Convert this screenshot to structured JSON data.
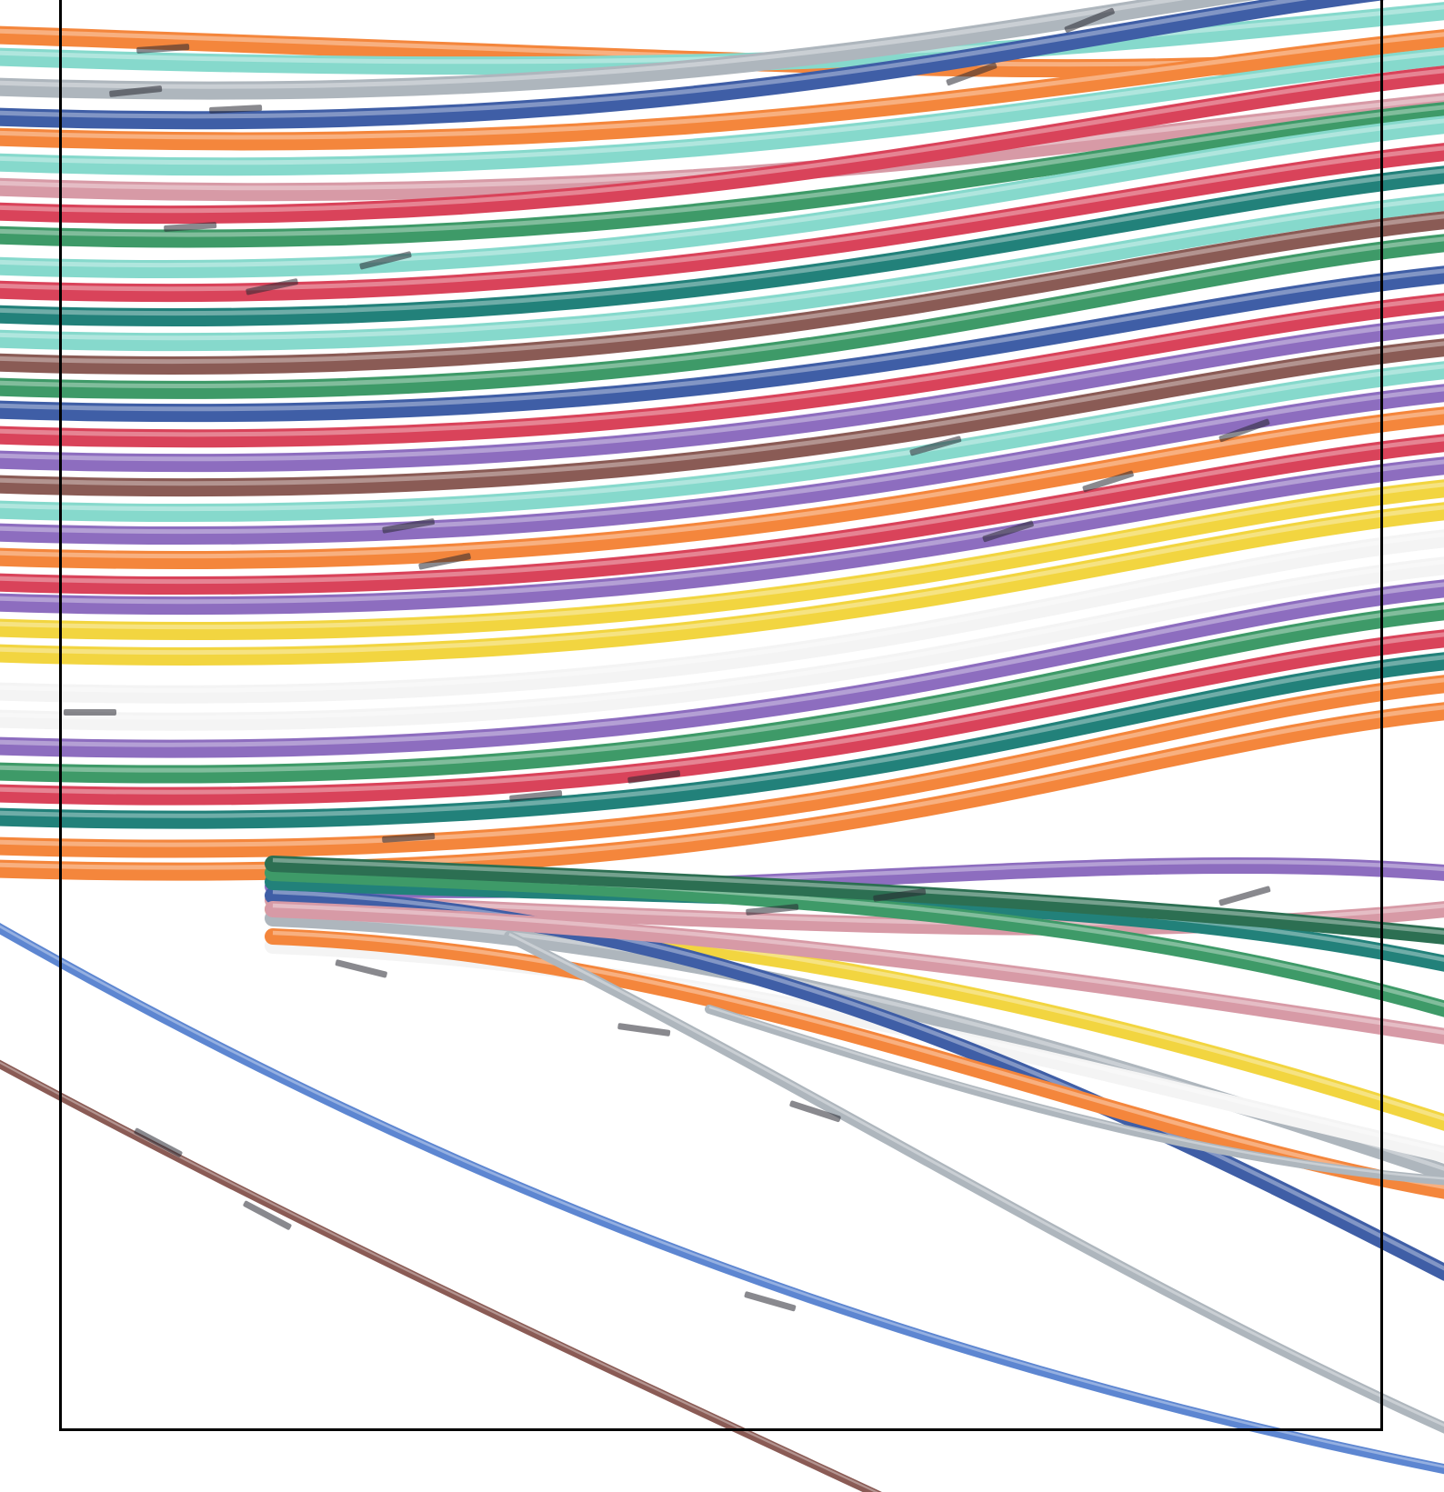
{
  "scene": {
    "subject": "wire-bundle",
    "background_color": "#ffffff",
    "frame_color": "#000000",
    "wire_colors": {
      "orange": "#f4863c",
      "aqua": "#86d9cc",
      "gray": "#aeb6bd",
      "blue": "#3f5ea6",
      "red": "#d9435a",
      "pink": "#d79aa6",
      "green": "#3e9a68",
      "teal": "#22817a",
      "brown": "#8a5b55",
      "purple": "#8d6dbf",
      "yellow": "#f2d540",
      "white": "#f4f4f4",
      "light-blue": "#5d86d1",
      "dark-green": "#2c6f52"
    }
  }
}
